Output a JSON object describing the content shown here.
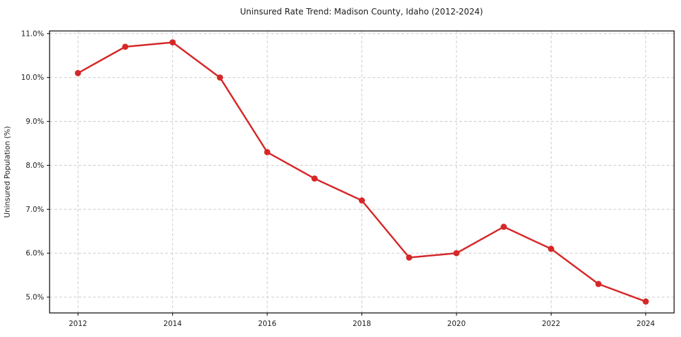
{
  "chart_data": {
    "type": "line",
    "title": "Uninsured Rate Trend: Madison County, Idaho (2012-2024)",
    "xlabel": "",
    "ylabel": "Uninsured Population (%)",
    "x": [
      2012,
      2013,
      2014,
      2015,
      2016,
      2017,
      2018,
      2019,
      2020,
      2021,
      2022,
      2023,
      2024
    ],
    "values": [
      10.1,
      10.7,
      10.8,
      10.0,
      8.3,
      7.7,
      7.2,
      5.9,
      6.0,
      6.6,
      6.1,
      5.3,
      4.9
    ],
    "xticks": [
      2012,
      2014,
      2016,
      2018,
      2020,
      2022,
      2024
    ],
    "xtick_labels": [
      "2012",
      "2014",
      "2016",
      "2018",
      "2020",
      "2022",
      "2024"
    ],
    "yticks": [
      5.0,
      6.0,
      7.0,
      8.0,
      9.0,
      10.0,
      11.0
    ],
    "ytick_labels": [
      "5.0%",
      "6.0%",
      "7.0%",
      "8.0%",
      "9.0%",
      "10.0%",
      "11.0%"
    ],
    "xlim": [
      2011.4,
      2024.6
    ],
    "ylim": [
      4.64,
      11.06
    ],
    "grid": true,
    "legend_position": "none",
    "line_color": "#d62728",
    "marker": "circle",
    "marker_radius": 4.5,
    "grid_color": "#cccccc",
    "axis_color": "#000000",
    "text_color": "#1a1a1a",
    "background_color": "#ffffff"
  }
}
